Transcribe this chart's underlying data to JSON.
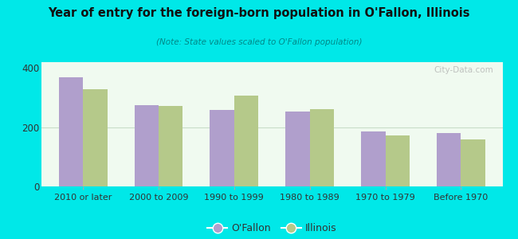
{
  "title": "Year of entry for the foreign-born population in O'Fallon, Illinois",
  "subtitle": "(Note: State values scaled to O'Fallon population)",
  "categories": [
    "2010 or later",
    "2000 to 2009",
    "1990 to 1999",
    "1980 to 1989",
    "1970 to 1979",
    "Before 1970"
  ],
  "ofallon_values": [
    370,
    275,
    258,
    252,
    185,
    180
  ],
  "illinois_values": [
    328,
    272,
    308,
    262,
    172,
    158
  ],
  "ofallon_color": "#b09fcc",
  "illinois_color": "#b5c98a",
  "background_outer": "#00e8e8",
  "background_inner_top": "#f0faf0",
  "background_inner_bottom": "#d8edd8",
  "title_color": "#111111",
  "subtitle_color": "#008888",
  "ylim": [
    0,
    420
  ],
  "yticks": [
    0,
    200,
    400
  ],
  "bar_width": 0.32,
  "grid_color": "#c8ddc8",
  "watermark": "City-Data.com"
}
